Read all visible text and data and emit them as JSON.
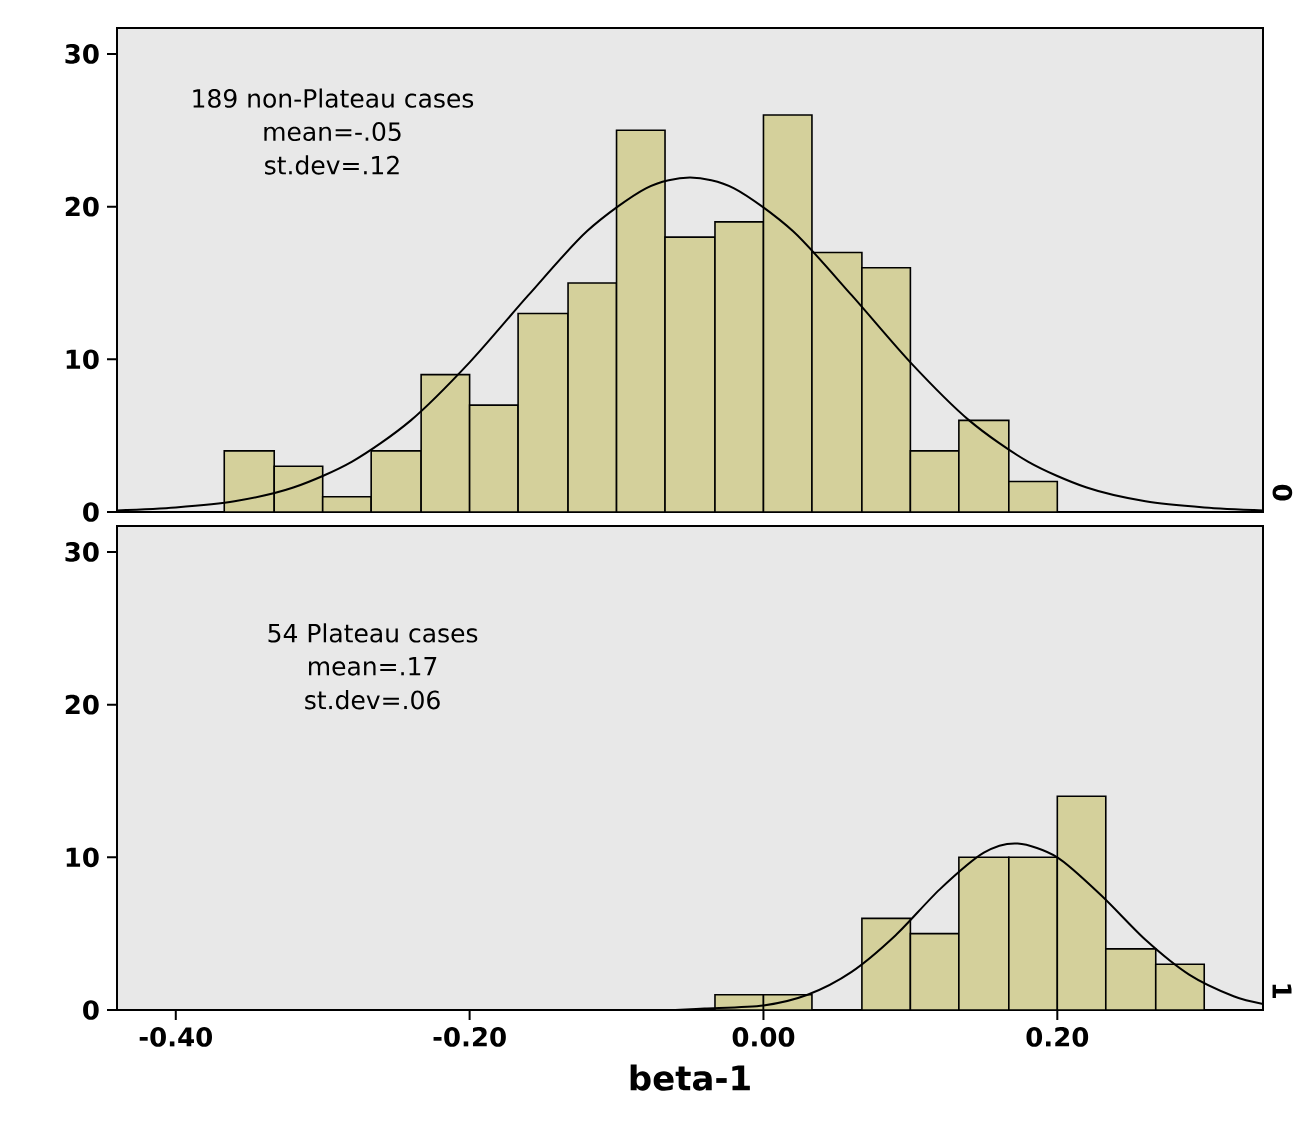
{
  "chart_data": [
    {
      "type": "histogram",
      "title": "0",
      "annotations": [
        "189 non-Plateau cases",
        "mean=-.05",
        "st.dev=.12"
      ],
      "bins": [
        -0.367,
        -0.333,
        -0.3,
        -0.267,
        -0.233,
        -0.2,
        -0.167,
        -0.133,
        -0.1,
        -0.067,
        -0.033,
        0,
        0.033,
        0.067,
        0.1,
        0.133,
        0.167,
        0.2
      ],
      "values": [
        4,
        3,
        1,
        4,
        9,
        7,
        13,
        15,
        25,
        18,
        19,
        26,
        17,
        16,
        4,
        6,
        2
      ],
      "color": "#d4d09b",
      "series": [
        {
          "type": "line",
          "color": "#000000",
          "x": [
            -0.44,
            -0.4,
            -0.36,
            -0.32,
            -0.28,
            -0.24,
            -0.2,
            -0.16,
            -0.12,
            -0.08,
            -0.05,
            -0.02,
            0.02,
            0.06,
            0.1,
            0.14,
            0.18,
            0.22,
            0.26,
            0.3,
            0.34
          ],
          "values": [
            0.1,
            0.3,
            0.7,
            1.6,
            3.3,
            6.0,
            9.8,
            14.2,
            18.4,
            21.2,
            21.9,
            21.2,
            18.4,
            14.2,
            9.8,
            6.0,
            3.3,
            1.6,
            0.7,
            0.3,
            0.1
          ]
        }
      ],
      "xlim": [
        -0.44,
        0.34
      ],
      "ylim": [
        0,
        31.7
      ],
      "yticks": [
        0,
        10,
        20,
        30
      ],
      "tick_labels": "y"
    },
    {
      "type": "histogram",
      "title": "1",
      "xlabel": "beta-1",
      "annotations": [
        "54 Plateau cases",
        "mean=.17",
        "st.dev=.06"
      ],
      "bins": [
        -0.033,
        0,
        0.033,
        0.067,
        0.1,
        0.133,
        0.167,
        0.2,
        0.233,
        0.267,
        0.3
      ],
      "values": [
        1,
        1,
        0,
        6,
        5,
        10,
        10,
        14,
        4,
        3
      ],
      "color": "#d4d09b",
      "series": [
        {
          "type": "line",
          "color": "#000000",
          "x": [
            -0.06,
            -0.04,
            0.0,
            0.03,
            0.06,
            0.09,
            0.12,
            0.15,
            0.173,
            0.2,
            0.23,
            0.26,
            0.29,
            0.32,
            0.34
          ],
          "values": [
            0.0,
            0.1,
            0.3,
            1.0,
            2.5,
            4.9,
            7.9,
            10.3,
            10.9,
            10.0,
            7.5,
            4.6,
            2.3,
            0.9,
            0.4
          ]
        }
      ],
      "xlim": [
        -0.44,
        0.34
      ],
      "ylim": [
        0,
        31.7
      ],
      "yticks": [
        0,
        10,
        20,
        30
      ],
      "xticks": [
        {
          "value": -0.4,
          "label": "-0.40"
        },
        {
          "value": -0.2,
          "label": "-0.20"
        },
        {
          "value": 0,
          "label": "0.00"
        },
        {
          "value": 0.2,
          "label": "0.20"
        }
      ]
    }
  ]
}
